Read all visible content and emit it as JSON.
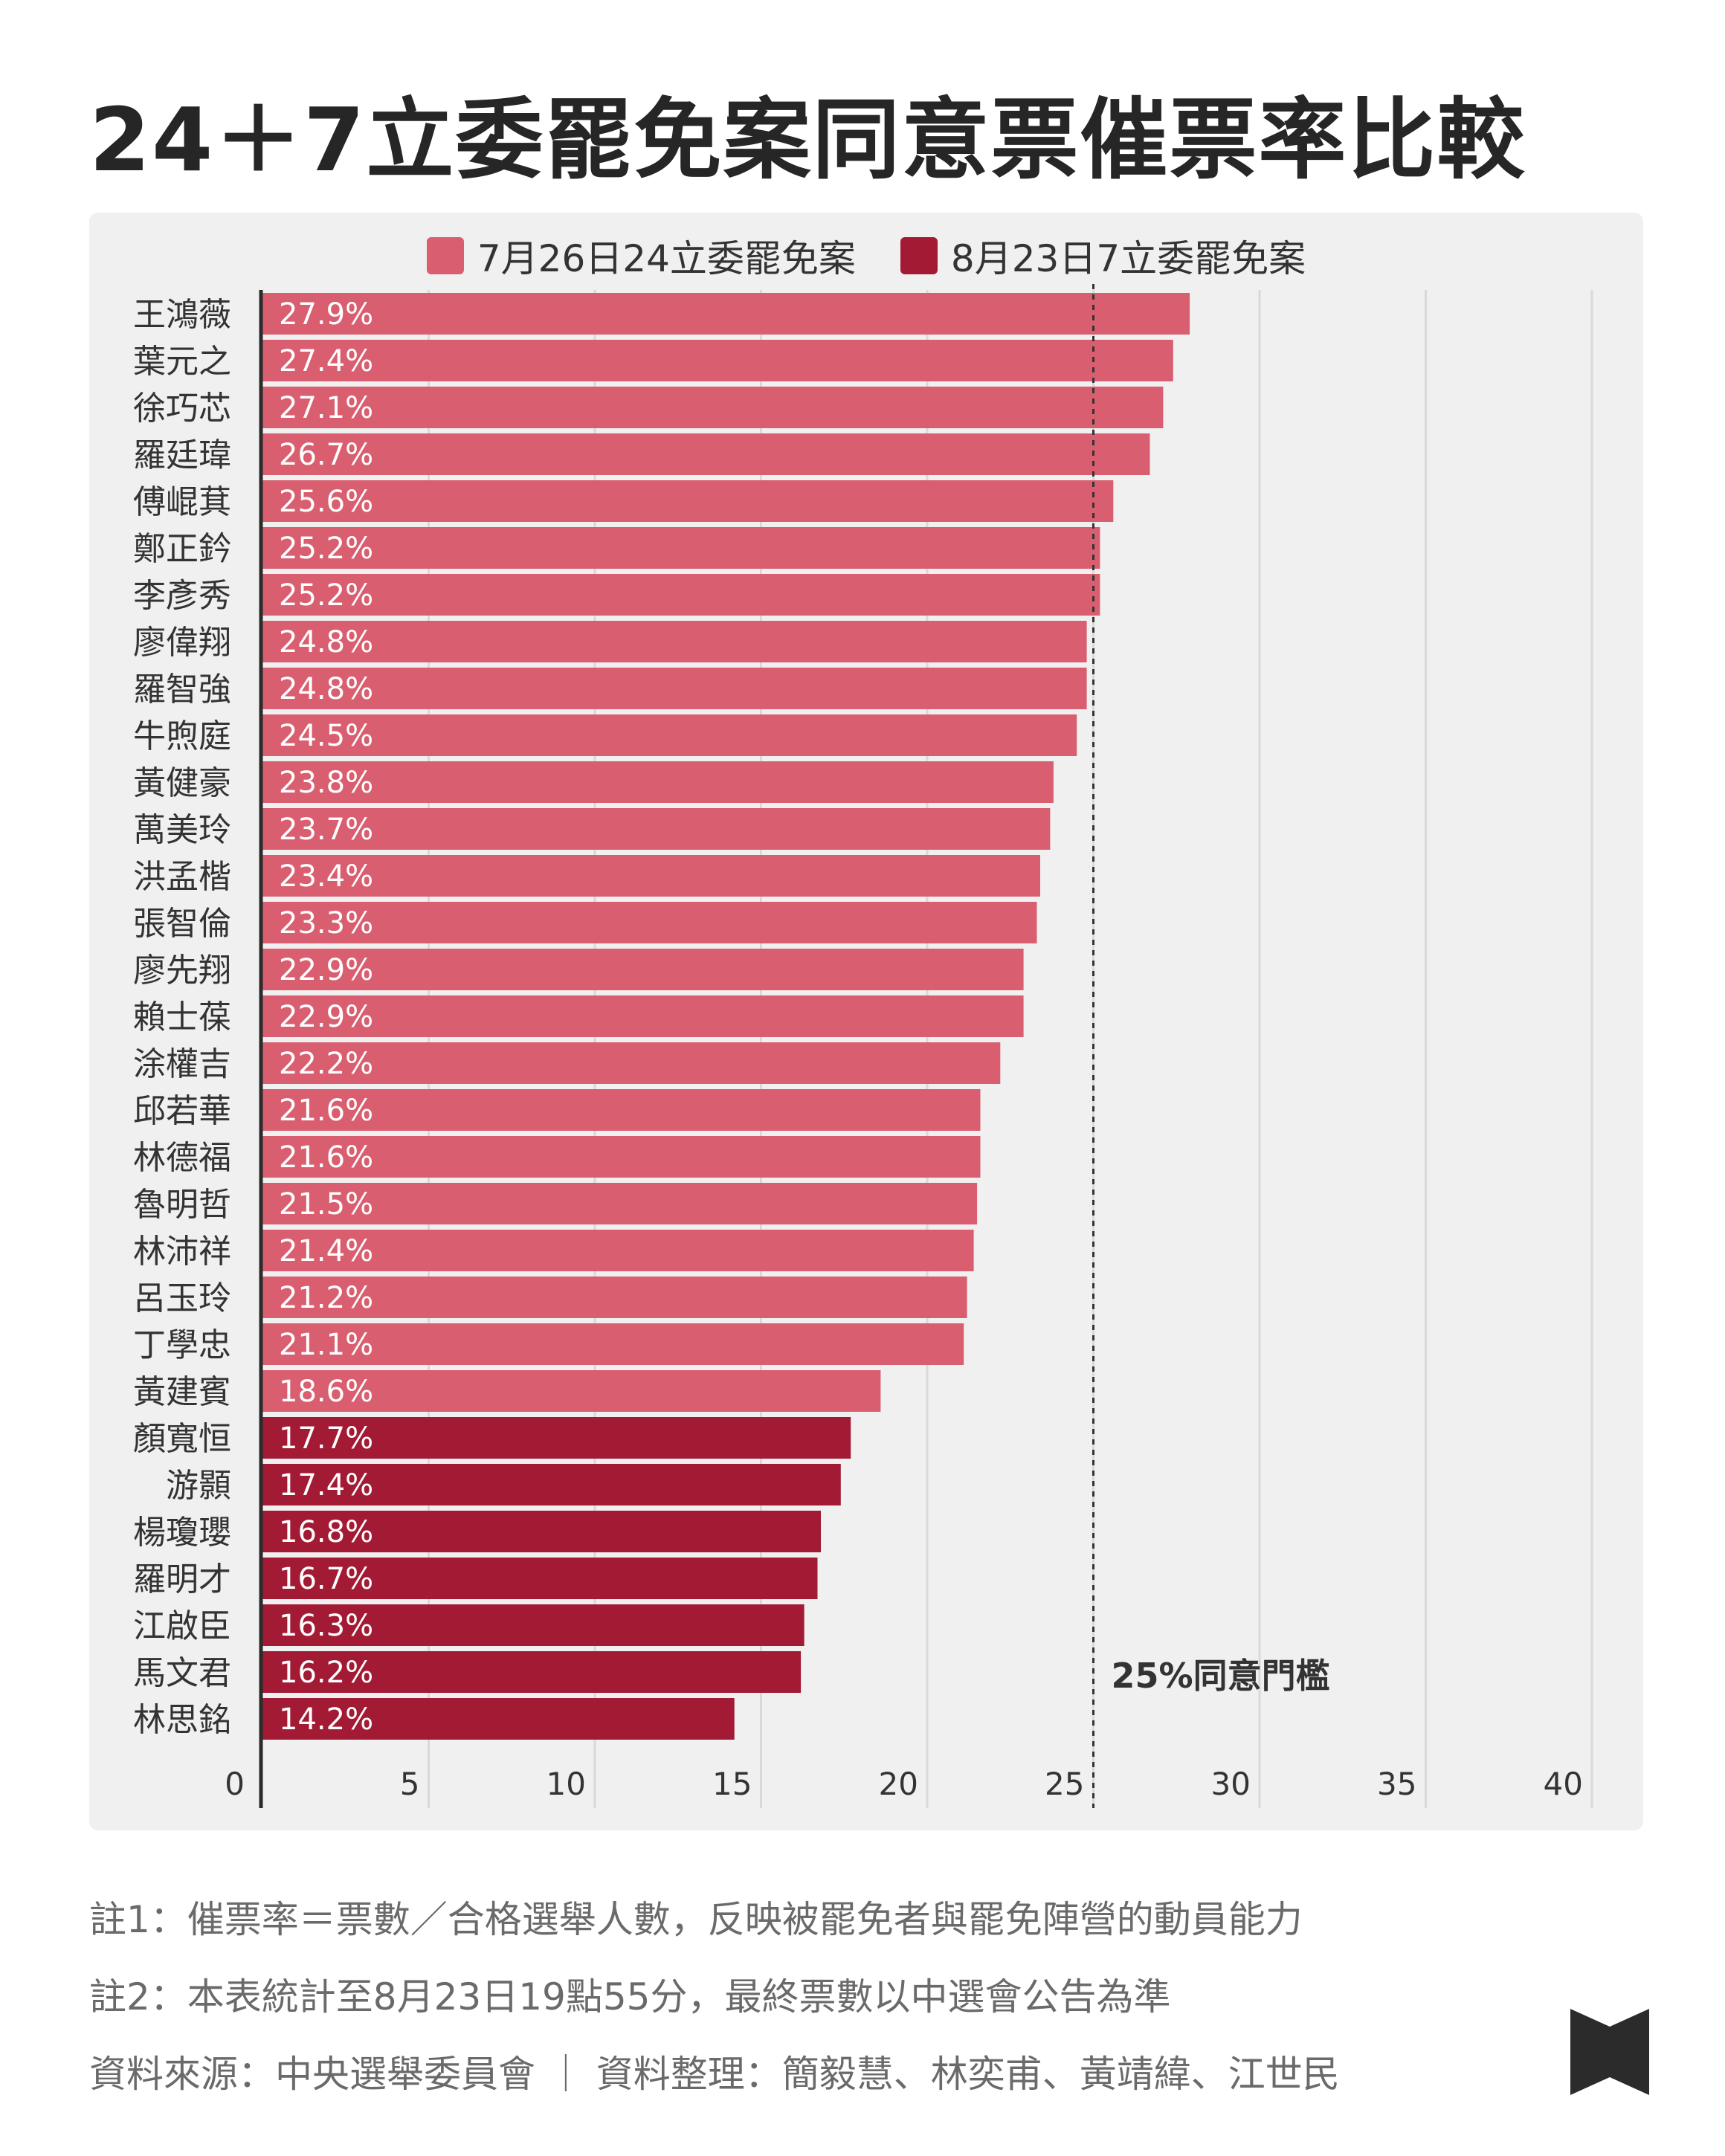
{
  "title": "24＋7立委罷免案同意票催票率比較",
  "legend": [
    {
      "label": "7月26日24立委罷免案",
      "color": "#d95f70"
    },
    {
      "label": "8月23日7立委罷免案",
      "color": "#a31a34"
    }
  ],
  "threshold_label": "25%同意門檻",
  "chart_data": {
    "type": "bar",
    "orientation": "horizontal",
    "title": "24＋7立委罷免案同意票催票率比較",
    "xlim": [
      0,
      40
    ],
    "x_ticks": [
      0,
      5,
      10,
      15,
      20,
      25,
      30,
      35,
      40
    ],
    "grid": true,
    "legend_position": "top",
    "threshold": 25,
    "series": [
      {
        "name": "7月26日24立委罷免案",
        "color": "#d95f70",
        "categories": [
          "王鴻薇",
          "葉元之",
          "徐巧芯",
          "羅廷瑋",
          "傅崐萁",
          "鄭正鈐",
          "李彥秀",
          "廖偉翔",
          "羅智強",
          "牛煦庭",
          "黃健豪",
          "萬美玲",
          "洪孟楷",
          "張智倫",
          "廖先翔",
          "賴士葆",
          "涂權吉",
          "邱若華",
          "林德福",
          "魯明哲",
          "林沛祥",
          "呂玉玲",
          "丁學忠",
          "黃建賓"
        ],
        "values": [
          27.9,
          27.4,
          27.1,
          26.7,
          25.6,
          25.2,
          25.2,
          24.8,
          24.8,
          24.5,
          23.8,
          23.7,
          23.4,
          23.3,
          22.9,
          22.9,
          22.2,
          21.6,
          21.6,
          21.5,
          21.4,
          21.2,
          21.1,
          18.6
        ],
        "labels": [
          "27.9%",
          "27.4%",
          "27.1%",
          "26.7%",
          "25.6%",
          "25.2%",
          "25.2%",
          "24.8%",
          "24.8%",
          "24.5%",
          "23.8%",
          "23.7%",
          "23.4%",
          "23.3%",
          "22.9%",
          "22.9%",
          "22.2%",
          "21.6%",
          "21.6%",
          "21.5%",
          "21.4%",
          "21.2%",
          "21.1%",
          "18.6%"
        ]
      },
      {
        "name": "8月23日7立委罷免案",
        "color": "#a31a34",
        "categories": [
          "顏寬恒",
          "游顥",
          "楊瓊瓔",
          "羅明才",
          "江啟臣",
          "馬文君",
          "林思銘"
        ],
        "values": [
          17.7,
          17.4,
          16.8,
          16.7,
          16.3,
          16.2,
          14.2
        ],
        "labels": [
          "17.7%",
          "17.4%",
          "16.8%",
          "16.7%",
          "16.3%",
          "16.2%",
          "14.2%"
        ]
      }
    ]
  },
  "notes": [
    "註1：催票率＝票數／合格選舉人數，反映被罷免者與罷免陣營的動員能力",
    "註2：本表統計至8月23日19點55分，最終票數以中選會公告為準",
    "資料來源：中央選舉委員會 ｜ 資料整理：簡毅慧、林奕甫、黃靖緯、江世民"
  ]
}
